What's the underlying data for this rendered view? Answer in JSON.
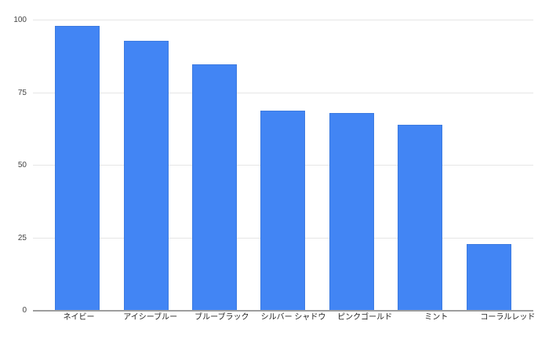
{
  "chart_data": {
    "type": "bar",
    "title": "",
    "xlabel": "",
    "ylabel": "",
    "categories": [
      "ネイビー",
      "アイシーブルー",
      "ブルーブラック",
      "シルバー シャドウ",
      "ピンクゴールド",
      "ミント",
      "コーラルレッド"
    ],
    "values": [
      98,
      93,
      85,
      69,
      68,
      64,
      23
    ],
    "ylim": [
      0,
      100
    ],
    "yticks": [
      0,
      25,
      50,
      75,
      100
    ],
    "grid": true,
    "legend_position": "none",
    "colors": {
      "bar_fill": "#4285f4",
      "bar_border": "#3d7be0",
      "gridline": "#e6e6e6",
      "axis_line": "#9e9e9e",
      "y_label_text": "#444444",
      "x_label_text": "#222222",
      "background": "#ffffff"
    }
  }
}
